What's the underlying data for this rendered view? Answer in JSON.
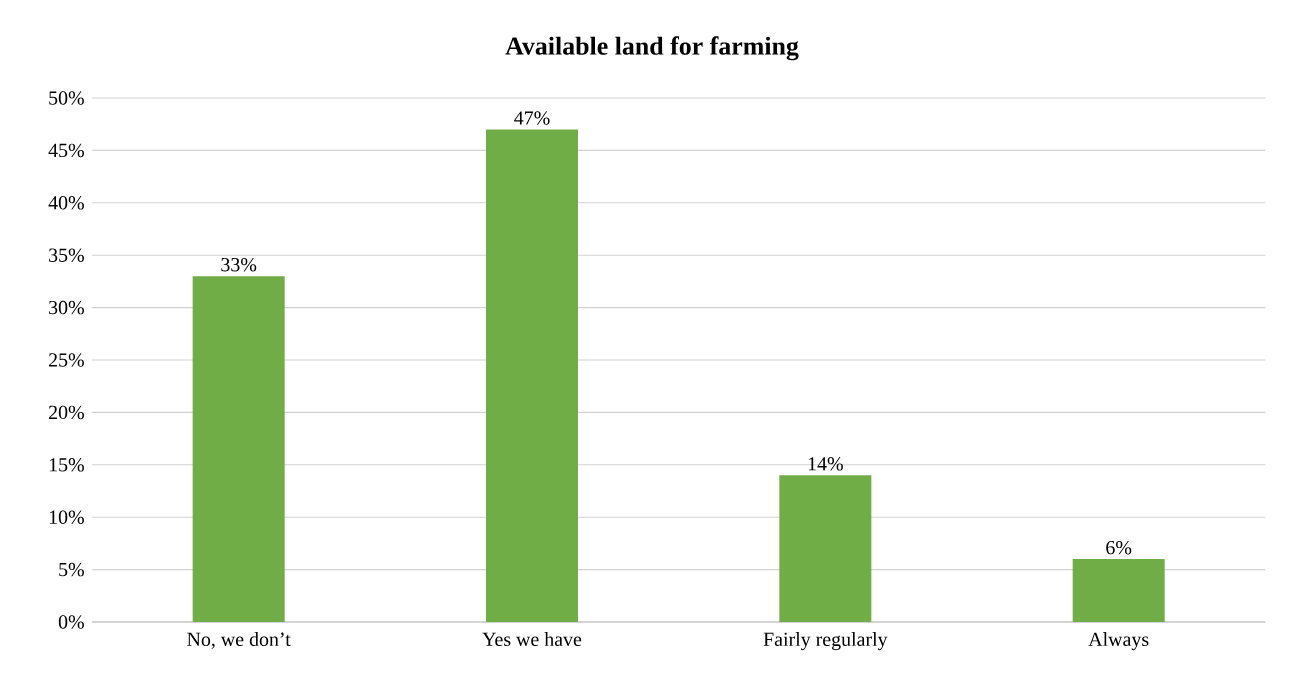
{
  "chart_data": {
    "type": "bar",
    "title": "Available land for farming",
    "categories": [
      "No, we don’t",
      "Yes we have",
      "Fairly regularly",
      "Always"
    ],
    "values": [
      33,
      47,
      14,
      6
    ],
    "value_labels": [
      "33%",
      "47%",
      "14%",
      "6%"
    ],
    "color": "#70ad47",
    "ylim": [
      0,
      50
    ],
    "yticks": [
      {
        "value": 0,
        "label": "0%"
      },
      {
        "value": 5,
        "label": "5%"
      },
      {
        "value": 10,
        "label": "10%"
      },
      {
        "value": 15,
        "label": "15%"
      },
      {
        "value": 20,
        "label": "20%"
      },
      {
        "value": 25,
        "label": "25%"
      },
      {
        "value": 30,
        "label": "30%"
      },
      {
        "value": 35,
        "label": "35%"
      },
      {
        "value": 40,
        "label": "40%"
      },
      {
        "value": 45,
        "label": "45%"
      },
      {
        "value": 50,
        "label": "50%"
      }
    ],
    "grid": "y"
  }
}
